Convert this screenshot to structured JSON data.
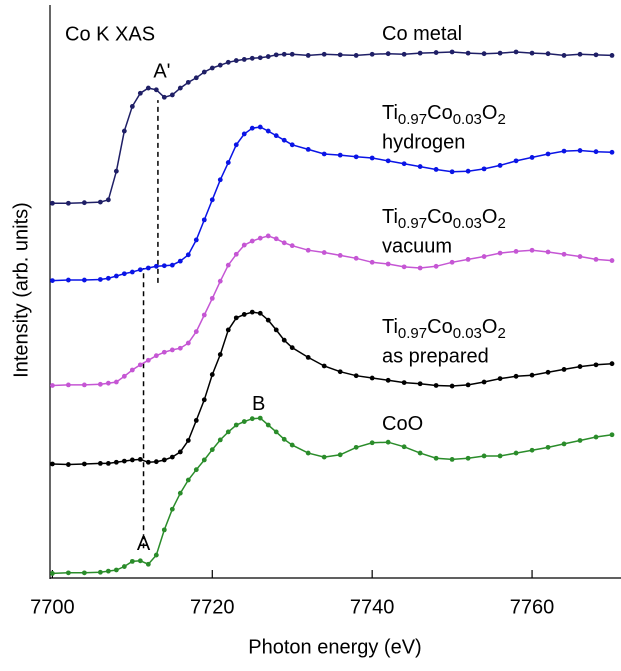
{
  "chart_data": {
    "type": "line",
    "title": "Co K XAS",
    "x_label": "Photon energy (eV)",
    "y_label": "Intensity (arb. units)",
    "xlim": [
      7699.7,
      7771
    ],
    "ylim": [
      0,
      100
    ],
    "xticks": [
      7700,
      7720,
      7740,
      7760
    ],
    "x": [
      7700,
      7702,
      7704,
      7706,
      7707,
      7708,
      7709,
      7710,
      7711,
      7712,
      7713,
      7714,
      7715,
      7716,
      7717,
      7718,
      7719,
      7720,
      7721,
      7722,
      7723,
      7724,
      7725,
      7726,
      7727,
      7728,
      7729,
      7730,
      7732,
      7734,
      7736,
      7738,
      7740,
      7742,
      7744,
      7746,
      7748,
      7750,
      7752,
      7754,
      7756,
      7758,
      7760,
      7762,
      7764,
      7766,
      7768,
      7770
    ],
    "series": [
      {
        "name": "Co metal",
        "color": "#1f1f66",
        "values": [
          65.4,
          65.4,
          65.5,
          65.6,
          66.0,
          71,
          78,
          82.3,
          84.6,
          85.5,
          85.2,
          83.9,
          84.3,
          85.5,
          86.5,
          87.3,
          88.3,
          89.0,
          89.5,
          90.0,
          90.3,
          90.5,
          90.7,
          90.8,
          91.0,
          91.3,
          91.4,
          91.4,
          91.2,
          91.4,
          91.3,
          91.2,
          91.4,
          91.5,
          91.4,
          91.6,
          91.7,
          91.8,
          91.6,
          91.5,
          91.6,
          91.8,
          91.6,
          91.5,
          91.2,
          91.4,
          91.3,
          91.2
        ]
      },
      {
        "name": "Ti0.97Co0.03O2",
        "condition": "hydrogen",
        "color": "#0a14e6",
        "values": [
          51.9,
          52.0,
          52.0,
          52.1,
          52.3,
          52.7,
          53.1,
          53.4,
          53.8,
          54.1,
          54.4,
          54.5,
          54.6,
          55.3,
          56.4,
          59.0,
          62.5,
          66.0,
          69.5,
          72.5,
          75.6,
          77.5,
          78.5,
          78.7,
          78.0,
          77.2,
          76.4,
          75.6,
          74.8,
          74.0,
          73.8,
          73.5,
          73.3,
          72.8,
          72.3,
          71.8,
          71.3,
          70.9,
          71.0,
          71.4,
          72.0,
          72.8,
          73.4,
          74.0,
          74.5,
          74.6,
          74.4,
          74.3
        ]
      },
      {
        "name": "Ti0.97Co0.03O2",
        "condition": "vacuum",
        "color": "#c556d4",
        "values": [
          33.6,
          33.7,
          33.7,
          33.8,
          34.0,
          34.2,
          35.2,
          36.3,
          37.2,
          38.0,
          38.8,
          39.4,
          39.8,
          40.1,
          41.0,
          43.0,
          45.9,
          48.8,
          51.8,
          54.6,
          56.5,
          58.1,
          58.8,
          59.3,
          59.7,
          59.2,
          58.5,
          58.0,
          57.2,
          56.8,
          56.3,
          55.8,
          55.1,
          54.8,
          54.3,
          54.1,
          54.4,
          55.1,
          55.6,
          56.1,
          56.7,
          57.0,
          57.2,
          56.9,
          56.5,
          56.1,
          55.6,
          55.4
        ]
      },
      {
        "name": "Ti0.97Co0.03O2",
        "condition": "as prepared",
        "color": "#000000",
        "values": [
          19.9,
          19.8,
          19.9,
          20.0,
          20.0,
          20.2,
          20.4,
          20.6,
          20.7,
          20.2,
          20.3,
          20.6,
          21.1,
          22.0,
          24.0,
          27.5,
          31.1,
          35.5,
          39.0,
          43.3,
          45.4,
          46.0,
          46.4,
          46.2,
          45.0,
          43.3,
          41.5,
          40.2,
          38.5,
          37.0,
          36.0,
          35.3,
          34.9,
          34.5,
          34.1,
          33.9,
          33.6,
          33.5,
          33.7,
          34.2,
          34.8,
          35.2,
          35.4,
          35.9,
          36.4,
          36.9,
          37.2,
          37.4
        ]
      },
      {
        "name": "CoO",
        "color": "#2a8c2a",
        "values": [
          0.8,
          0.9,
          0.9,
          1.0,
          1.2,
          1.4,
          2.0,
          2.9,
          3.0,
          2.4,
          4.0,
          8.4,
          12.0,
          14.8,
          17.1,
          18.9,
          20.6,
          22.4,
          24.1,
          25.5,
          26.7,
          27.3,
          27.8,
          27.9,
          26.7,
          25.5,
          24.2,
          23.2,
          21.8,
          21.1,
          21.5,
          22.8,
          23.6,
          23.7,
          22.9,
          21.8,
          20.9,
          20.7,
          20.9,
          21.3,
          21.3,
          21.8,
          22.3,
          22.8,
          23.4,
          24.0,
          24.6,
          25.0
        ]
      }
    ],
    "markers": [
      {
        "x": 7713.2,
        "y": [
          51.5,
          83.4
        ]
      },
      {
        "x": 7711.4,
        "y": [
          5.2,
          54.1
        ]
      }
    ],
    "annotations": [
      {
        "text": "A'",
        "x": 7713.7,
        "y": 88.3
      },
      {
        "text": "A",
        "x": 7711.4,
        "y": 5.8
      },
      {
        "text": "B",
        "x": 7725.8,
        "y": 30.2
      }
    ]
  }
}
